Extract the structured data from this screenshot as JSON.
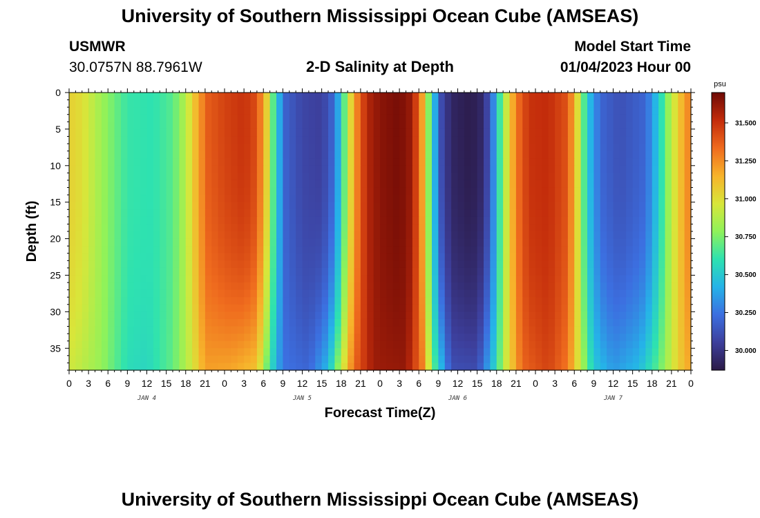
{
  "page": {
    "title": "University of Southern Mississippi Ocean Cube (AMSEAS)",
    "footer_title": "University of Southern Mississippi Ocean Cube (AMSEAS)",
    "station_id": "USMWR",
    "coordinates": "30.0757N  88.7961W",
    "subtitle": "2-D Salinity at Depth",
    "model_start_label": "Model Start Time",
    "model_start_value": "01/04/2023 Hour 00"
  },
  "chart_data": {
    "type": "heatmap",
    "title": "2-D Salinity at Depth",
    "xlabel": "Forecast Time(Z)",
    "ylabel": "Depth (ft)",
    "x_range_hours": [
      0,
      96
    ],
    "x_tick_step_hours": 3,
    "x_tick_labels": [
      "0",
      "3",
      "6",
      "9",
      "12",
      "15",
      "18",
      "21",
      "0",
      "3",
      "6",
      "9",
      "12",
      "15",
      "18",
      "21",
      "0",
      "3",
      "6",
      "9",
      "12",
      "15",
      "18",
      "21",
      "0",
      "3",
      "6",
      "9",
      "12",
      "15",
      "18",
      "21",
      "0"
    ],
    "day_labels": [
      {
        "label": "JAN 4",
        "hour": 12
      },
      {
        "label": "JAN 5",
        "hour": 36
      },
      {
        "label": "JAN 6",
        "hour": 60
      },
      {
        "label": "JAN 7",
        "hour": 84
      }
    ],
    "y_range_ft": [
      0,
      38
    ],
    "y_ticks": [
      0,
      5,
      10,
      15,
      20,
      25,
      30,
      35
    ],
    "colorbar": {
      "unit": "psu",
      "range": [
        29.87,
        31.7
      ],
      "ticks": [
        "30.000",
        "30.250",
        "30.500",
        "30.750",
        "31.000",
        "31.250",
        "31.500"
      ],
      "tick_values": [
        30.0,
        30.25,
        30.5,
        30.75,
        31.0,
        31.25,
        31.5
      ],
      "colormap": [
        "#2b1a47",
        "#3d3f9c",
        "#3c6fe0",
        "#25b3e8",
        "#2ee2b0",
        "#8ff25a",
        "#d8e63a",
        "#f7b32b",
        "#ef6b1e",
        "#c32c0b",
        "#6e0a06"
      ]
    },
    "salinity_profile_surface": [
      {
        "hour": 0,
        "psu": 31.05
      },
      {
        "hour": 2,
        "psu": 31.0
      },
      {
        "hour": 5,
        "psu": 30.82
      },
      {
        "hour": 9,
        "psu": 30.62
      },
      {
        "hour": 13,
        "psu": 30.6
      },
      {
        "hour": 16,
        "psu": 30.68
      },
      {
        "hour": 18,
        "psu": 30.88
      },
      {
        "hour": 20,
        "psu": 31.2
      },
      {
        "hour": 21.5,
        "psu": 31.38
      },
      {
        "hour": 24,
        "psu": 31.45
      },
      {
        "hour": 27,
        "psu": 31.5
      },
      {
        "hour": 29,
        "psu": 31.42
      },
      {
        "hour": 30.5,
        "psu": 31.05
      },
      {
        "hour": 32,
        "psu": 30.5
      },
      {
        "hour": 33.5,
        "psu": 30.18
      },
      {
        "hour": 36,
        "psu": 30.08
      },
      {
        "hour": 39,
        "psu": 30.05
      },
      {
        "hour": 41,
        "psu": 30.22
      },
      {
        "hour": 42.5,
        "psu": 30.7
      },
      {
        "hour": 44,
        "psu": 31.2
      },
      {
        "hour": 46,
        "psu": 31.55
      },
      {
        "hour": 48,
        "psu": 31.64
      },
      {
        "hour": 51,
        "psu": 31.68
      },
      {
        "hour": 53,
        "psu": 31.6
      },
      {
        "hour": 54.5,
        "psu": 31.2
      },
      {
        "hour": 56,
        "psu": 30.55
      },
      {
        "hour": 57.5,
        "psu": 30.1
      },
      {
        "hour": 59,
        "psu": 29.93
      },
      {
        "hour": 62,
        "psu": 29.88
      },
      {
        "hour": 64,
        "psu": 29.95
      },
      {
        "hour": 65.5,
        "psu": 30.3
      },
      {
        "hour": 67,
        "psu": 30.8
      },
      {
        "hour": 69,
        "psu": 31.3
      },
      {
        "hour": 71,
        "psu": 31.5
      },
      {
        "hour": 74,
        "psu": 31.52
      },
      {
        "hour": 77,
        "psu": 31.4
      },
      {
        "hour": 78.5,
        "psu": 31.0
      },
      {
        "hour": 80,
        "psu": 30.5
      },
      {
        "hour": 82,
        "psu": 30.2
      },
      {
        "hour": 85,
        "psu": 30.12
      },
      {
        "hour": 89,
        "psu": 30.2
      },
      {
        "hour": 91,
        "psu": 30.5
      },
      {
        "hour": 93,
        "psu": 30.9
      },
      {
        "hour": 95,
        "psu": 31.2
      },
      {
        "hour": 96,
        "psu": 31.3
      }
    ],
    "salinity_profile_bottom": [
      {
        "hour": 0,
        "psu": 30.95
      },
      {
        "hour": 5,
        "psu": 30.8
      },
      {
        "hour": 9,
        "psu": 30.58
      },
      {
        "hour": 12,
        "psu": 30.55
      },
      {
        "hour": 16,
        "psu": 30.7
      },
      {
        "hour": 19,
        "psu": 30.95
      },
      {
        "hour": 21,
        "psu": 31.2
      },
      {
        "hour": 25,
        "psu": 31.18
      },
      {
        "hour": 29,
        "psu": 31.1
      },
      {
        "hour": 31,
        "psu": 30.6
      },
      {
        "hour": 33,
        "psu": 30.25
      },
      {
        "hour": 37,
        "psu": 30.2
      },
      {
        "hour": 40,
        "psu": 30.45
      },
      {
        "hour": 42,
        "psu": 30.9
      },
      {
        "hour": 44,
        "psu": 31.35
      },
      {
        "hour": 47,
        "psu": 31.6
      },
      {
        "hour": 52,
        "psu": 31.62
      },
      {
        "hour": 54.5,
        "psu": 31.3
      },
      {
        "hour": 56.5,
        "psu": 30.65
      },
      {
        "hour": 59,
        "psu": 30.12
      },
      {
        "hour": 63,
        "psu": 30.1
      },
      {
        "hour": 65.5,
        "psu": 30.5
      },
      {
        "hour": 67.5,
        "psu": 30.95
      },
      {
        "hour": 70,
        "psu": 31.35
      },
      {
        "hour": 74,
        "psu": 31.45
      },
      {
        "hour": 77,
        "psu": 31.3
      },
      {
        "hour": 79,
        "psu": 30.9
      },
      {
        "hour": 81,
        "psu": 30.5
      },
      {
        "hour": 84,
        "psu": 30.35
      },
      {
        "hour": 88,
        "psu": 30.45
      },
      {
        "hour": 91,
        "psu": 30.7
      },
      {
        "hour": 94,
        "psu": 31.05
      },
      {
        "hour": 96,
        "psu": 31.2
      }
    ]
  }
}
